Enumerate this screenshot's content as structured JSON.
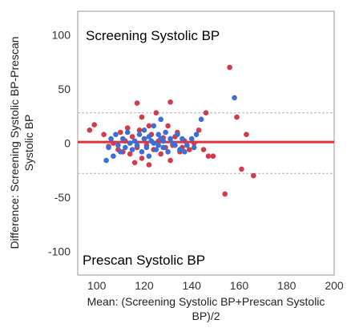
{
  "chart_data": {
    "type": "scatter",
    "xlabel_line1": "Mean: (Screening Systolic BP+Prescan Systolic",
    "xlabel_line2": "BP)/2",
    "ylabel_line1": "Difference: Screening Systolic BP-Prescan",
    "ylabel_line2": "Systolic BP",
    "top_label": "Screening Systolic BP",
    "bottom_label": "Prescan Systolic BP",
    "xlim": [
      92,
      200
    ],
    "ylim": [
      -122,
      122
    ],
    "xticks": [
      "100",
      "120",
      "140",
      "160",
      "180",
      "200"
    ],
    "xtick_values": [
      100,
      120,
      140,
      160,
      180,
      200
    ],
    "yticks": [
      "100",
      "50",
      "0",
      "-50",
      "-100"
    ],
    "ytick_values": [
      100,
      50,
      0,
      -50,
      -100
    ],
    "mean_line": 1,
    "upper_limit": 28,
    "lower_limit": -28,
    "colors": {
      "red_series": "#d13b4a",
      "blue_series": "#3a6fd6",
      "mean_line": "#e0323f",
      "limit_line": "#b3b3b3",
      "frame": "#9a9a9a"
    },
    "series": [
      {
        "color": "red",
        "points": [
          [
            97,
            12
          ],
          [
            99,
            17
          ],
          [
            103,
            8
          ],
          [
            105,
            -3
          ],
          [
            107,
            0
          ],
          [
            109,
            -6
          ],
          [
            110,
            10
          ],
          [
            111,
            -8
          ],
          [
            112,
            2
          ],
          [
            113,
            14
          ],
          [
            114,
            -10
          ],
          [
            115,
            6
          ],
          [
            116,
            -18
          ],
          [
            117,
            -4
          ],
          [
            117,
            37
          ],
          [
            118,
            12
          ],
          [
            119,
            -14
          ],
          [
            119,
            24
          ],
          [
            120,
            4
          ],
          [
            121,
            -2
          ],
          [
            122,
            16
          ],
          [
            122,
            -20
          ],
          [
            123,
            8
          ],
          [
            124,
            -6
          ],
          [
            125,
            28
          ],
          [
            126,
            2
          ],
          [
            127,
            -10
          ],
          [
            128,
            5
          ],
          [
            129,
            -4
          ],
          [
            130,
            16
          ],
          [
            131,
            38
          ],
          [
            131,
            -16
          ],
          [
            132,
            -2
          ],
          [
            133,
            6
          ],
          [
            134,
            10
          ],
          [
            135,
            -8
          ],
          [
            136,
            -4
          ],
          [
            137,
            2
          ],
          [
            139,
            -6
          ],
          [
            141,
            0
          ],
          [
            143,
            12
          ],
          [
            145,
            -6
          ],
          [
            146,
            28
          ],
          [
            147,
            -12
          ],
          [
            149,
            -12
          ],
          [
            154,
            -47
          ],
          [
            156,
            70
          ],
          [
            159,
            24
          ],
          [
            161,
            -24
          ],
          [
            163,
            8
          ],
          [
            166,
            -30
          ]
        ]
      },
      {
        "color": "blue",
        "points": [
          [
            104,
            -16
          ],
          [
            105,
            -4
          ],
          [
            106,
            4
          ],
          [
            107,
            -12
          ],
          [
            108,
            8
          ],
          [
            109,
            -2
          ],
          [
            110,
            -8
          ],
          [
            111,
            4
          ],
          [
            112,
            -4
          ],
          [
            113,
            10
          ],
          [
            114,
            0
          ],
          [
            115,
            -6
          ],
          [
            116,
            2
          ],
          [
            117,
            -2
          ],
          [
            118,
            8
          ],
          [
            119,
            -8
          ],
          [
            120,
            4
          ],
          [
            120,
            12
          ],
          [
            121,
            -4
          ],
          [
            122,
            6
          ],
          [
            122,
            -12
          ],
          [
            123,
            2
          ],
          [
            124,
            0
          ],
          [
            124,
            16
          ],
          [
            125,
            -6
          ],
          [
            126,
            8
          ],
          [
            126,
            -2
          ],
          [
            127,
            4
          ],
          [
            127,
            22
          ],
          [
            128,
            -4
          ],
          [
            128,
            2
          ],
          [
            129,
            10
          ],
          [
            130,
            -8
          ],
          [
            131,
            4
          ],
          [
            132,
            0
          ],
          [
            133,
            -2
          ],
          [
            134,
            8
          ],
          [
            135,
            -6
          ],
          [
            136,
            4
          ],
          [
            137,
            -8
          ],
          [
            138,
            -2
          ],
          [
            140,
            4
          ],
          [
            141,
            -4
          ],
          [
            142,
            8
          ],
          [
            144,
            22
          ],
          [
            158,
            42
          ]
        ]
      }
    ]
  }
}
